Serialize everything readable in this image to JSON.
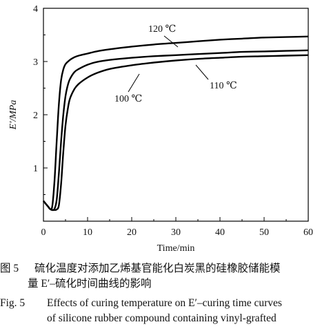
{
  "chart_data": {
    "type": "line",
    "xlabel": "Time/min",
    "ylabel": "E′/MPa",
    "xlim": [
      0,
      60
    ],
    "ylim": [
      0,
      4
    ],
    "xticks": [
      0,
      10,
      20,
      30,
      40,
      50,
      60
    ],
    "yticks": [
      1,
      2,
      3,
      4
    ],
    "grid": false,
    "series": [
      {
        "name": "120 ℃",
        "color": "#000000",
        "x": [
          0,
          0.5,
          1,
          1.5,
          2,
          2.5,
          3,
          3.5,
          4,
          4.5,
          5,
          6,
          7,
          8,
          10,
          12,
          15,
          20,
          25,
          30,
          35,
          40,
          45,
          50,
          55,
          60
        ],
        "y": [
          0.38,
          0.33,
          0.28,
          0.23,
          0.28,
          0.75,
          1.5,
          2.2,
          2.65,
          2.85,
          2.95,
          3.03,
          3.08,
          3.11,
          3.15,
          3.19,
          3.23,
          3.28,
          3.32,
          3.35,
          3.38,
          3.41,
          3.43,
          3.45,
          3.46,
          3.47
        ]
      },
      {
        "name": "110 ℃",
        "color": "#000000",
        "x": [
          0,
          0.5,
          1,
          1.5,
          2,
          2.5,
          3,
          3.5,
          4,
          4.5,
          5,
          5.5,
          6,
          7,
          8,
          10,
          12,
          15,
          20,
          25,
          30,
          35,
          40,
          45,
          50,
          55,
          60
        ],
        "y": [
          0.38,
          0.33,
          0.28,
          0.23,
          0.21,
          0.23,
          0.4,
          0.9,
          1.5,
          2.0,
          2.35,
          2.55,
          2.67,
          2.8,
          2.86,
          2.94,
          2.99,
          3.03,
          3.07,
          3.1,
          3.12,
          3.14,
          3.16,
          3.18,
          3.19,
          3.2,
          3.21
        ]
      },
      {
        "name": "100 ℃",
        "color": "#000000",
        "x": [
          0,
          0.5,
          1,
          1.5,
          2,
          2.5,
          3,
          3.5,
          4,
          4.5,
          5,
          5.5,
          6,
          7,
          8,
          10,
          12,
          15,
          20,
          25,
          30,
          35,
          40,
          45,
          50,
          55,
          60
        ],
        "y": [
          0.38,
          0.33,
          0.28,
          0.23,
          0.21,
          0.21,
          0.22,
          0.3,
          0.7,
          1.3,
          1.8,
          2.1,
          2.3,
          2.48,
          2.58,
          2.7,
          2.78,
          2.86,
          2.93,
          2.98,
          3.02,
          3.05,
          3.07,
          3.09,
          3.1,
          3.11,
          3.12
        ]
      }
    ],
    "annotations": [
      "120 ℃",
      "110 ℃",
      "100 ℃"
    ]
  },
  "caption": {
    "zh_label": "图 5",
    "zh_line1": "硫化温度对添加乙烯基官能化白炭黑的硅橡胶储能模",
    "zh_line2": "量 E′–硫化时间曲线的影响",
    "en_label": "Fig. 5",
    "en_line1": "Effects of curing temperature on E′–curing time curves",
    "en_line2": "of silicone rubber compound containing vinyl-grafted"
  }
}
